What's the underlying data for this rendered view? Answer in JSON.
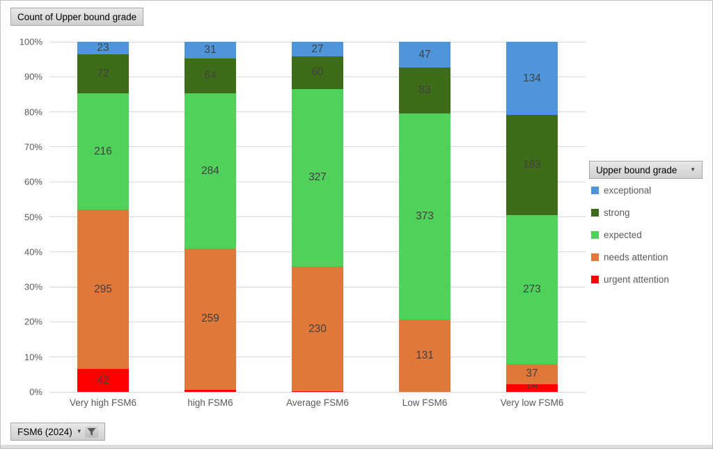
{
  "field_buttons": {
    "values_label": "Count of Upper bound grade",
    "legend_label": "Upper bound grade",
    "axis_filter_label": "FSM6 (2024)"
  },
  "legend": {
    "items": [
      {
        "label": "exceptional",
        "color": "#4E96D9"
      },
      {
        "label": "strong",
        "color": "#3F6C18"
      },
      {
        "label": "expected",
        "color": "#4FD15A"
      },
      {
        "label": "needs attention",
        "color": "#E0783C"
      },
      {
        "label": "urgent attention",
        "color": "#FE0000"
      }
    ]
  },
  "chart_data": {
    "type": "bar",
    "stacking": "percent",
    "title": "Count of Upper bound grade",
    "xlabel": "",
    "ylabel": "",
    "ylim": [
      0,
      100
    ],
    "grid": true,
    "legend_position": "right",
    "yticks": [
      "0%",
      "10%",
      "20%",
      "30%",
      "40%",
      "50%",
      "60%",
      "70%",
      "80%",
      "90%",
      "100%"
    ],
    "categories": [
      "Very high FSM6",
      "high FSM6",
      "Average FSM6",
      "Low FSM6",
      "Very low FSM6"
    ],
    "series": [
      {
        "name": "urgent attention",
        "color": "#FE0000",
        "values": [
          42,
          4,
          1,
          0,
          14
        ]
      },
      {
        "name": "needs attention",
        "color": "#E0783C",
        "values": [
          295,
          259,
          230,
          131,
          37
        ]
      },
      {
        "name": "expected",
        "color": "#4FD15A",
        "values": [
          216,
          284,
          327,
          373,
          273
        ]
      },
      {
        "name": "strong",
        "color": "#3F6C18",
        "values": [
          72,
          64,
          60,
          83,
          183
        ]
      },
      {
        "name": "exceptional",
        "color": "#4E96D9",
        "values": [
          23,
          31,
          27,
          47,
          134
        ]
      }
    ]
  },
  "style": {
    "grid_color": "#d9d9d9",
    "axis_text_color": "#595959",
    "data_label_color": "#404040"
  }
}
